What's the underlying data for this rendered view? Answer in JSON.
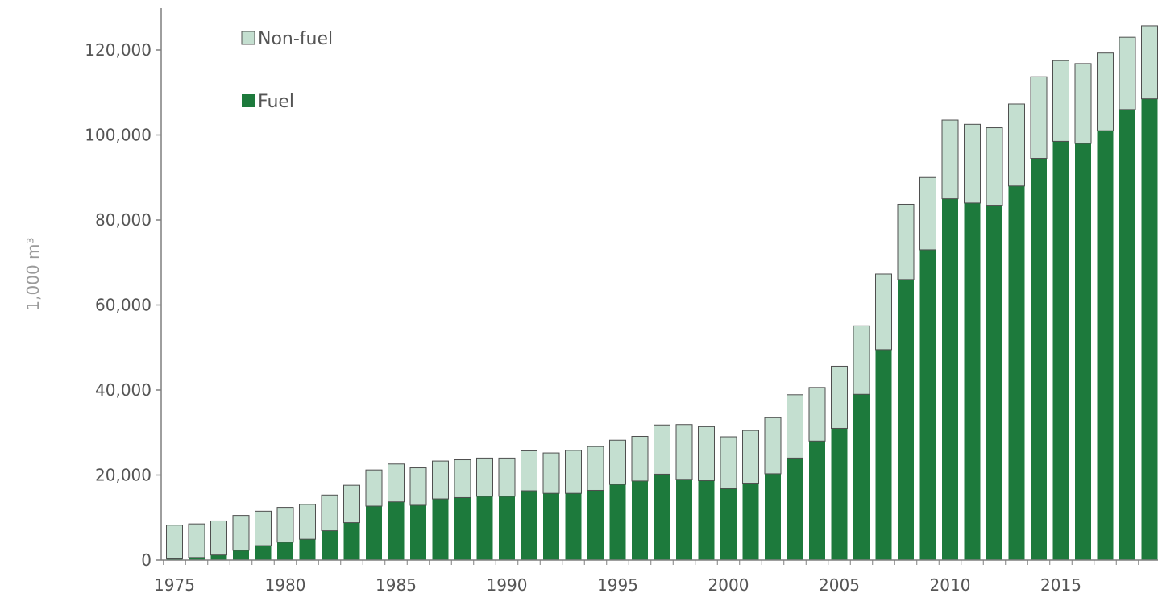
{
  "chart_data": {
    "type": "bar",
    "stacked": true,
    "ylabel": "1,000 m³",
    "xlabel": "",
    "ylim": [
      0,
      130000
    ],
    "yticks": [
      0,
      20000,
      40000,
      60000,
      80000,
      100000,
      120000
    ],
    "ytick_labels": [
      "0",
      "20,000",
      "40,000",
      "60,000",
      "80,000",
      "100,000",
      "120,000"
    ],
    "xtick_labels": [
      "1975",
      "1980",
      "1985",
      "1990",
      "1995",
      "2000",
      "2005",
      "2010",
      "2015"
    ],
    "grid": false,
    "legend_position": "top-left",
    "categories": [
      1975,
      1976,
      1977,
      1978,
      1979,
      1980,
      1981,
      1982,
      1983,
      1984,
      1985,
      1986,
      1987,
      1988,
      1989,
      1990,
      1991,
      1992,
      1993,
      1994,
      1995,
      1996,
      1997,
      1998,
      1999,
      2000,
      2001,
      2002,
      2003,
      2004,
      2005,
      2006,
      2007,
      2008,
      2009,
      2010,
      2011,
      2012,
      2013,
      2014,
      2015,
      2016,
      2017,
      2018,
      2019
    ],
    "series": [
      {
        "name": "Fuel",
        "color": "#1d7a3c",
        "values": [
          300,
          600,
          1200,
          2300,
          3400,
          4200,
          4900,
          6900,
          8800,
          12700,
          13700,
          12900,
          14400,
          14700,
          15000,
          15000,
          16300,
          15700,
          15700,
          16400,
          17800,
          18600,
          20200,
          19000,
          18700,
          16800,
          18100,
          20300,
          24000,
          28000,
          31000,
          39000,
          49500,
          66000,
          73000,
          85000,
          84000,
          83500,
          88000,
          94500,
          98500,
          98000,
          101000,
          106000,
          108500
        ]
      },
      {
        "name": "Non-fuel",
        "color": "#c4dfd0",
        "values": [
          7900,
          7900,
          8000,
          8200,
          8100,
          8200,
          8200,
          8400,
          8800,
          8500,
          8900,
          8800,
          8900,
          8900,
          9000,
          9000,
          9400,
          9500,
          10100,
          10300,
          10400,
          10500,
          11600,
          12900,
          12700,
          12200,
          12400,
          13200,
          14900,
          12600,
          14600,
          16100,
          17800,
          17700,
          17000,
          18500,
          18500,
          18200,
          19300,
          19200,
          19000,
          18800,
          18300,
          17000,
          17200
        ]
      }
    ]
  }
}
